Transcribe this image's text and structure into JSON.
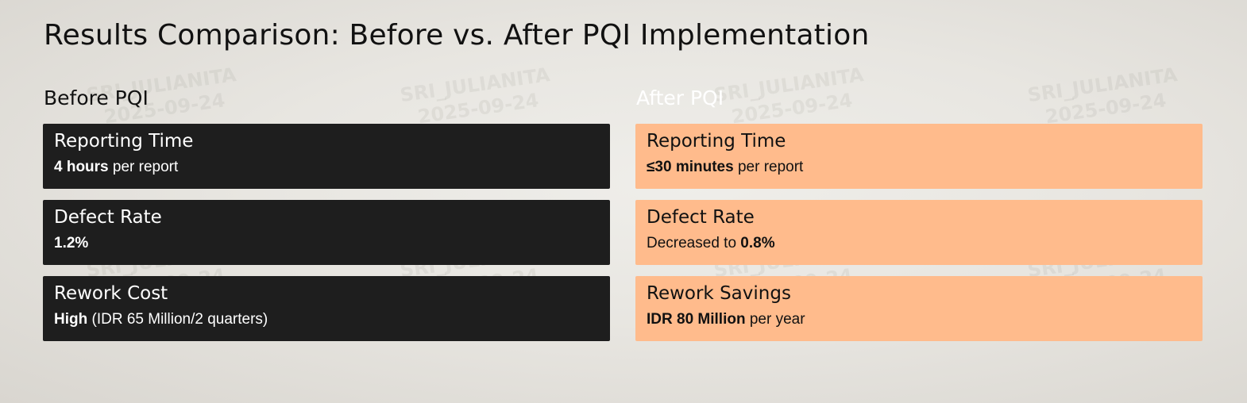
{
  "page": {
    "title": "Results Comparison: Before vs. After PQI Implementation"
  },
  "watermark": {
    "line1": "SRI_JULIANITA",
    "line2": "2025-09-24"
  },
  "before": {
    "heading": "Before PQI",
    "cards": [
      {
        "title": "Reporting Time",
        "prefix": "",
        "bold": "4 hours",
        "suffix": " per report"
      },
      {
        "title": "Defect Rate",
        "prefix": "",
        "bold": "1.2%",
        "suffix": ""
      },
      {
        "title": "Rework Cost",
        "prefix": "",
        "bold": "High",
        "suffix": " (IDR 65 Million/2 quarters)"
      }
    ]
  },
  "after": {
    "heading": "After PQI",
    "cards": [
      {
        "title": "Reporting Time",
        "prefix": "",
        "bold": "≤30 minutes",
        "suffix": " per report"
      },
      {
        "title": "Defect Rate",
        "prefix": "Decreased to ",
        "bold": "0.8%",
        "suffix": ""
      },
      {
        "title": "Rework Savings",
        "prefix": "",
        "bold": "IDR 80 Million",
        "suffix": " per year"
      }
    ]
  },
  "colors": {
    "before_card_bg": "#1e1e1e",
    "after_card_bg": "#ffbb8c",
    "title_text": "#111111"
  }
}
